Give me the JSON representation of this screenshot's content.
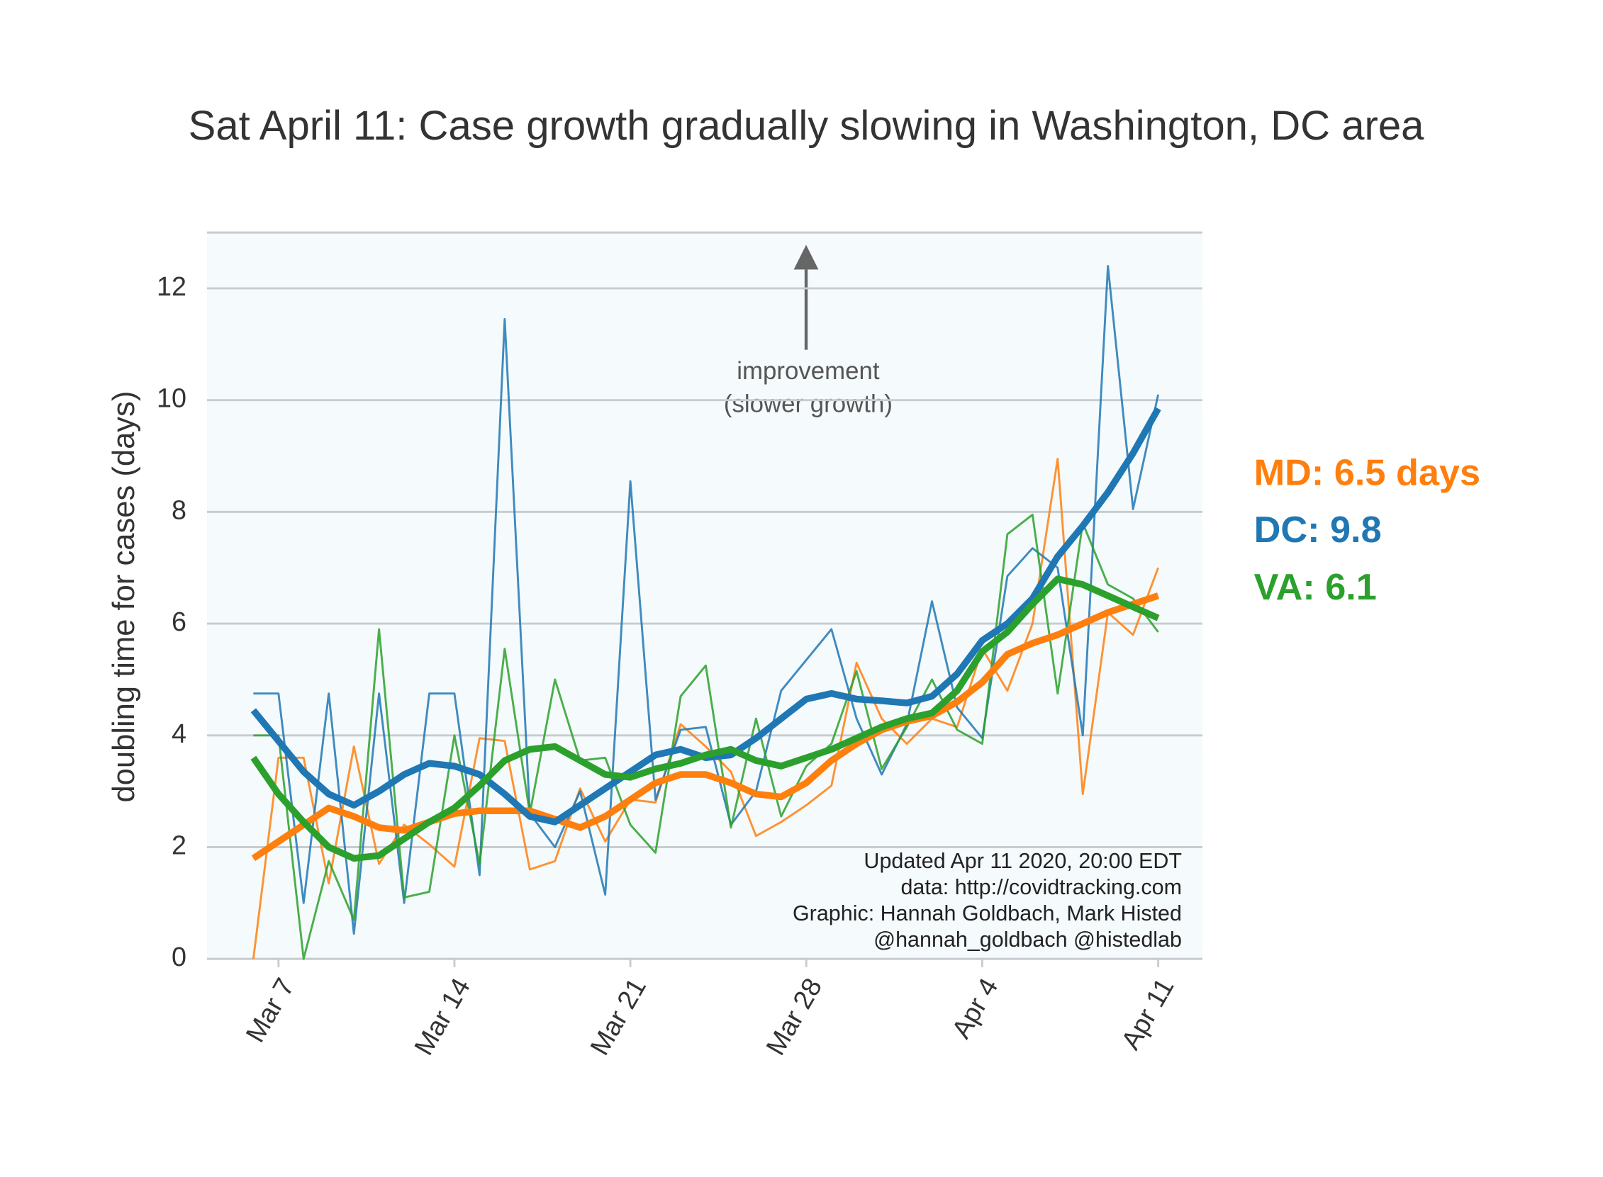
{
  "chart_data": {
    "type": "line",
    "title": "Sat April 11: Case growth gradually slowing in Washington, DC area",
    "y_label": "doubling time for cases (days)",
    "annotation": [
      "improvement",
      "(slower growth)"
    ],
    "footer": [
      "Updated Apr 11 2020, 20:00 EDT",
      "data: http://covidtracking.com",
      "Graphic: Hannah Goldbach, Mark Histed",
      "@hannah_goldbach @histedlab"
    ],
    "categories": [
      null,
      "Mar 7",
      null,
      null,
      null,
      null,
      null,
      null,
      "Mar 14",
      null,
      null,
      null,
      null,
      null,
      null,
      "Mar 21",
      null,
      null,
      null,
      null,
      null,
      null,
      "Mar 28",
      null,
      null,
      null,
      null,
      null,
      null,
      "Apr 4",
      null,
      null,
      null,
      null,
      null,
      null,
      "Apr 11"
    ],
    "ylim": [
      0,
      13
    ],
    "yticks": [
      0,
      2,
      4,
      6,
      8,
      10,
      12
    ],
    "grid": true,
    "series": [
      {
        "name": "MD: 6.5 days",
        "color": "#ff7f0e",
        "values": [
          1.8,
          2.1,
          2.4,
          2.7,
          2.55,
          2.35,
          2.3,
          2.45,
          2.6,
          2.65,
          2.65,
          2.65,
          2.5,
          2.35,
          2.55,
          2.85,
          3.15,
          3.3,
          3.3,
          3.15,
          2.95,
          2.9,
          3.15,
          3.55,
          3.85,
          4.1,
          4.25,
          4.35,
          4.6,
          4.95,
          5.45,
          5.65,
          5.8,
          6.0,
          6.2,
          6.35,
          6.5
        ],
        "raw": [
          0.0,
          3.6,
          3.6,
          1.35,
          3.8,
          1.7,
          2.4,
          2.05,
          1.65,
          3.95,
          3.9,
          1.6,
          1.75,
          3.05,
          2.1,
          2.85,
          2.8,
          4.2,
          3.8,
          3.35,
          2.2,
          2.45,
          2.75,
          3.1,
          5.3,
          4.3,
          3.85,
          4.3,
          4.15,
          5.55,
          4.8,
          6.0,
          8.95,
          2.95,
          6.2,
          5.8,
          7.0
        ]
      },
      {
        "name": "DC: 9.8",
        "color": "#1f77b4",
        "values": [
          4.45,
          3.9,
          3.35,
          2.95,
          2.75,
          3.0,
          3.3,
          3.5,
          3.45,
          3.3,
          2.95,
          2.55,
          2.45,
          2.75,
          3.05,
          3.35,
          3.65,
          3.75,
          3.6,
          3.65,
          3.95,
          4.3,
          4.65,
          4.75,
          4.65,
          4.62,
          4.58,
          4.7,
          5.1,
          5.7,
          6.0,
          6.45,
          7.2,
          7.75,
          8.35,
          9.05,
          9.85
        ],
        "raw": [
          4.75,
          4.75,
          1.0,
          4.75,
          0.45,
          4.75,
          1.0,
          4.75,
          4.75,
          1.5,
          11.45,
          2.6,
          2.0,
          3.0,
          1.15,
          8.55,
          2.85,
          4.1,
          4.15,
          2.4,
          3.0,
          4.8,
          5.35,
          5.9,
          4.3,
          3.3,
          4.2,
          6.4,
          4.5,
          3.95,
          6.85,
          7.35,
          7.0,
          4.0,
          12.4,
          8.05,
          10.1
        ]
      },
      {
        "name": "VA: 6.1",
        "color": "#2ca02c",
        "values": [
          3.6,
          2.95,
          2.45,
          2.0,
          1.8,
          1.85,
          2.15,
          2.45,
          2.7,
          3.1,
          3.55,
          3.75,
          3.8,
          3.55,
          3.3,
          3.25,
          3.4,
          3.5,
          3.65,
          3.75,
          3.55,
          3.45,
          3.6,
          3.75,
          3.95,
          4.15,
          4.3,
          4.4,
          4.8,
          5.5,
          5.85,
          6.35,
          6.8,
          6.7,
          6.5,
          6.3,
          6.1
        ],
        "raw": [
          4.0,
          4.0,
          0.0,
          1.75,
          0.7,
          5.9,
          1.1,
          1.2,
          4.0,
          1.7,
          5.55,
          2.6,
          5.0,
          3.55,
          3.6,
          2.4,
          1.9,
          4.7,
          5.25,
          2.35,
          4.3,
          2.55,
          3.45,
          3.85,
          5.15,
          3.4,
          4.15,
          5.0,
          4.1,
          3.85,
          7.6,
          7.95,
          4.75,
          7.8,
          6.7,
          6.45,
          5.85
        ]
      }
    ]
  }
}
